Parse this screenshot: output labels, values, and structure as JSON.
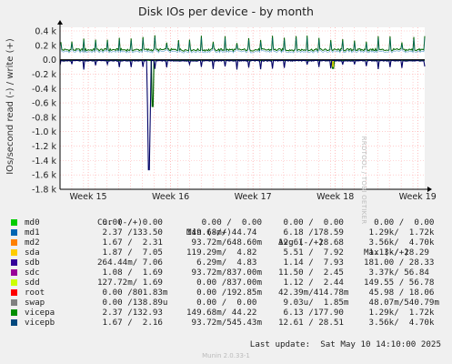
{
  "chart_data": {
    "type": "line",
    "title": "Disk IOs per device - by month",
    "ylabel": "IOs/second read (-) / write (+)",
    "ylim": [
      -1800,
      400
    ],
    "yticks": [
      {
        "v": 400,
        "label": "0.4 k"
      },
      {
        "v": 200,
        "label": "0.2 k"
      },
      {
        "v": 0,
        "label": "0.0"
      },
      {
        "v": -200,
        "label": "-0.2 k"
      },
      {
        "v": -400,
        "label": "-0.4 k"
      },
      {
        "v": -600,
        "label": "-0.6 k"
      },
      {
        "v": -800,
        "label": "-0.8 k"
      },
      {
        "v": -1000,
        "label": "-1.0 k"
      },
      {
        "v": -1200,
        "label": "-1.2 k"
      },
      {
        "v": -1400,
        "label": "-1.4 k"
      },
      {
        "v": -1600,
        "label": "-1.6 k"
      },
      {
        "v": -1800,
        "label": "-1.8 k"
      }
    ],
    "xlim": [
      0,
      31
    ],
    "xticks": [
      {
        "v": 2.4,
        "label": "Week 15"
      },
      {
        "v": 9.4,
        "label": "Week 16"
      },
      {
        "v": 16.4,
        "label": "Week 17"
      },
      {
        "v": 23.4,
        "label": "Week 18"
      },
      {
        "v": 30.4,
        "label": "Week 19"
      }
    ],
    "spike": {
      "x": 7.55,
      "read_min": -1530
    },
    "series_colors": {
      "vicepa": "#006600",
      "vicepb": "#1a3a5c",
      "sdb": "#000066",
      "sdd": "#cccc00",
      "md1": "#0066b3"
    }
  },
  "legend": {
    "headers": {
      "cur": "Cur (-/+)",
      "min": "Min (-/+)",
      "avg": "Avg (-/+)",
      "max": "Max (-/+)"
    },
    "rows": [
      {
        "name": "md0",
        "color": "#00cc00",
        "cur": " 0.00 /  0.00",
        "min": "   0.00 /  0.00",
        "avg": " 0.00 /  0.00",
        "max": "  0.00 /  0.00"
      },
      {
        "name": "md1",
        "color": "#0066b3",
        "cur": " 2.37 /133.50",
        "min": "149.68m/ 44.74",
        "avg": " 6.18 /178.59",
        "max": " 1.29k/  1.72k"
      },
      {
        "name": "md2",
        "color": "#ff8000",
        "cur": " 1.67 /  2.31",
        "min": " 93.72m/648.60m",
        "avg": "12.61 / 28.68",
        "max": " 3.56k/  4.70k"
      },
      {
        "name": "sda",
        "color": "#ffcc00",
        "cur": " 1.87 /  7.05",
        "min": "119.29m/  4.82",
        "avg": " 5.51 /  7.92",
        "max": " 1.13k/ 28.29"
      },
      {
        "name": "sdb",
        "color": "#330099",
        "cur": "264.44m/ 7.06",
        "min": "  6.29m/  4.83",
        "avg": " 1.14 /  7.93",
        "max": "181.00 / 28.33"
      },
      {
        "name": "sdc",
        "color": "#990099",
        "cur": " 1.08 /  1.69",
        "min": " 93.72m/837.00m",
        "avg": "11.50 /  2.45",
        "max": " 3.37k/ 56.84"
      },
      {
        "name": "sdd",
        "color": "#ccff00",
        "cur": "127.72m/ 1.69",
        "min": "  0.00 /837.00m",
        "avg": " 1.12 /  2.44",
        "max": "149.55 / 56.78"
      },
      {
        "name": "root",
        "color": "#ff0000",
        "cur": " 0.00 /801.83m",
        "min": "  0.00 /192.85m",
        "avg": "42.39m/414.78m",
        "max": " 45.98 / 18.06"
      },
      {
        "name": "swap",
        "color": "#808080",
        "cur": " 0.00 /138.89u",
        "min": "  0.00 /  0.00",
        "avg": " 9.03u/  1.85m",
        "max": " 48.07m/540.79m"
      },
      {
        "name": "vicepa",
        "color": "#008f00",
        "cur": " 2.37 /132.93",
        "min": "149.68m/ 44.22",
        "avg": " 6.13 /177.90",
        "max": " 1.29k/  1.72k"
      },
      {
        "name": "vicepb",
        "color": "#00487d",
        "cur": " 1.67 /  2.16",
        "min": " 93.72m/545.43m",
        "avg": "12.61 / 28.51",
        "max": " 3.56k/  4.70k"
      }
    ]
  },
  "last_update": "Last update:  Sat May 10 14:10:00 2025",
  "watermark": "RRDTOOL / TOBI OETIKER",
  "footer": "Munin 2.0.33-1"
}
